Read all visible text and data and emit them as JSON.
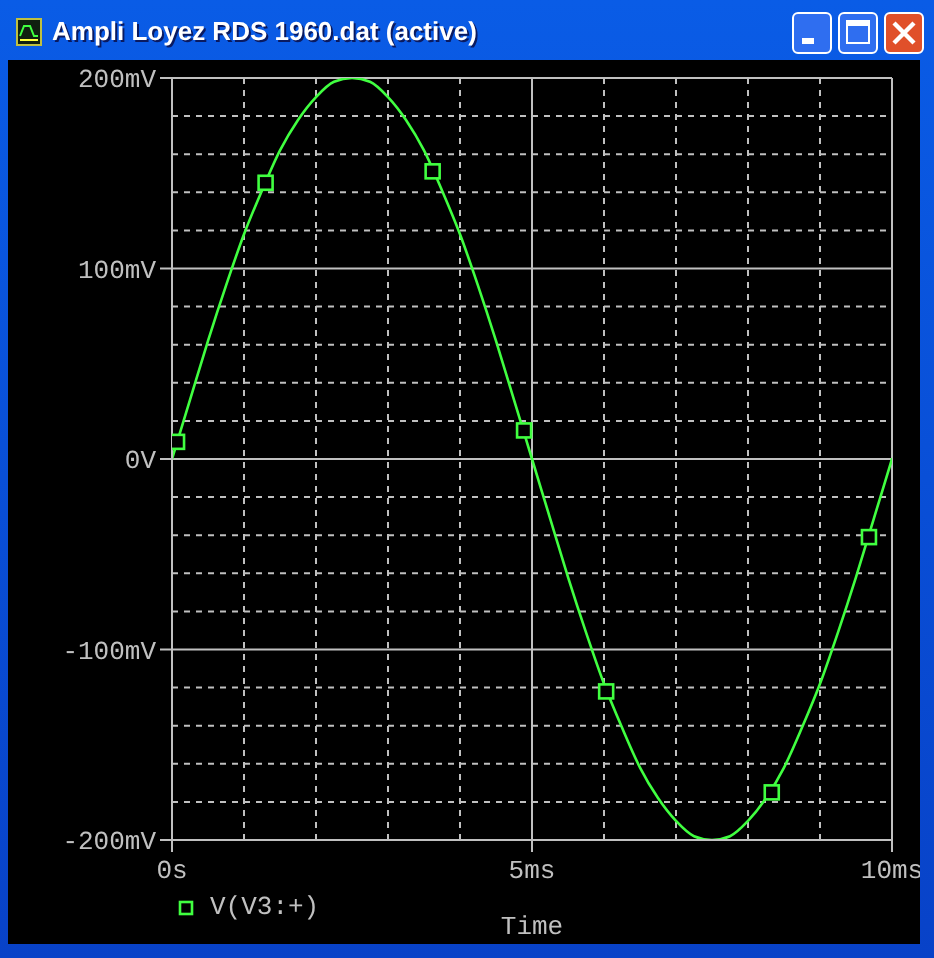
{
  "chart_data": {
    "type": "line",
    "title": "Ampli Loyez RDS 1960.dat (active)",
    "xlabel": "Time",
    "x": [
      0,
      0.25,
      0.5,
      0.75,
      1,
      1.25,
      1.5,
      1.75,
      2,
      2.25,
      2.5,
      2.75,
      3,
      3.25,
      3.5,
      3.75,
      4,
      4.25,
      4.5,
      4.75,
      5,
      5.25,
      5.5,
      5.75,
      6,
      6.25,
      6.5,
      6.75,
      7,
      7.25,
      7.5,
      7.75,
      8,
      8.25,
      8.5,
      8.75,
      9,
      9.25,
      9.5,
      9.75,
      10
    ],
    "series": [
      {
        "name": "V(V3:+)",
        "color": "#40ff40",
        "marker": "none",
        "values": [
          0,
          31,
          62,
          91,
          118,
          141,
          162,
          178,
          190,
          198,
          200,
          198,
          190,
          178,
          162,
          141,
          118,
          91,
          62,
          31,
          0,
          -31,
          -62,
          -91,
          -118,
          -141,
          -162,
          -178,
          -190,
          -198,
          -200,
          -198,
          -190,
          -178,
          -162,
          -141,
          -118,
          -91,
          -62,
          -31,
          0
        ]
      },
      {
        "type": "scatter",
        "color": "#40ff40",
        "x": [
          0.07,
          1.3,
          3.62,
          4.89,
          6.03,
          8.33,
          9.68
        ],
        "values": [
          9,
          145,
          151,
          15,
          -122,
          -175,
          -41
        ]
      }
    ],
    "xlim": [
      0,
      10
    ],
    "xticks": [
      {
        "value": 0,
        "label": "0s"
      },
      {
        "value": 1,
        "label": null
      },
      {
        "value": 2,
        "label": null
      },
      {
        "value": 3,
        "label": null
      },
      {
        "value": 4,
        "label": null
      },
      {
        "value": 5,
        "label": "5ms"
      },
      {
        "value": 6,
        "label": null
      },
      {
        "value": 7,
        "label": null
      },
      {
        "value": 8,
        "label": null
      },
      {
        "value": 9,
        "label": null
      },
      {
        "value": 10,
        "label": "10ms"
      }
    ],
    "ylim": [
      -200,
      200
    ],
    "yticks": [
      {
        "value": -200,
        "label": "-200mV"
      },
      {
        "value": -180,
        "label": null
      },
      {
        "value": -160,
        "label": null
      },
      {
        "value": -140,
        "label": null
      },
      {
        "value": -120,
        "label": null
      },
      {
        "value": -100,
        "label": "-100mV"
      },
      {
        "value": -80,
        "label": null
      },
      {
        "value": -60,
        "label": null
      },
      {
        "value": -40,
        "label": null
      },
      {
        "value": -20,
        "label": null
      },
      {
        "value": 0,
        "label": "0V"
      },
      {
        "value": 20,
        "label": null
      },
      {
        "value": 40,
        "label": null
      },
      {
        "value": 60,
        "label": null
      },
      {
        "value": 80,
        "label": null
      },
      {
        "value": 100,
        "label": "100mV"
      },
      {
        "value": 120,
        "label": null
      },
      {
        "value": 140,
        "label": null
      },
      {
        "value": 160,
        "label": null
      },
      {
        "value": 180,
        "label": null
      },
      {
        "value": 200,
        "label": "200mV"
      }
    ],
    "grid": true,
    "legend": "bottom left",
    "marker": "square"
  }
}
